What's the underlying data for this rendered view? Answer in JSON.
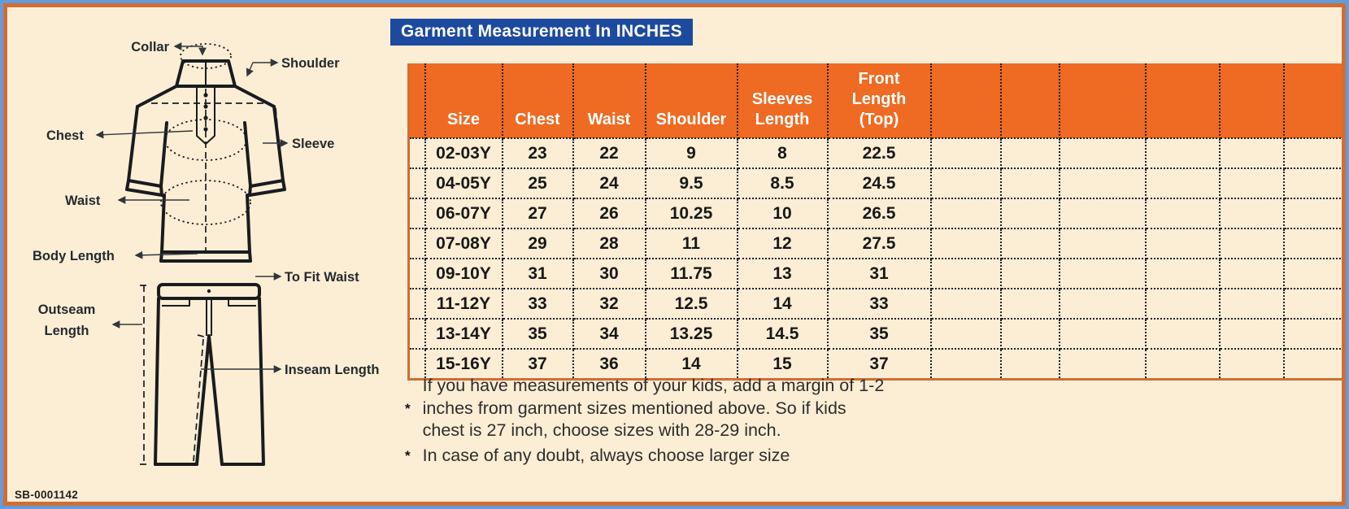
{
  "title": "Garment Measurement In INCHES",
  "product_code": "SB-0001142",
  "colors": {
    "background_cream": "#fceed5",
    "frame_blue": "#639bdd",
    "frame_orange": "#cf6e33",
    "header_orange": "#ef6a22",
    "title_blue": "#1c4a9e"
  },
  "diagram": {
    "labels": {
      "collar": "Collar",
      "shoulder": "Shoulder",
      "chest": "Chest",
      "sleeve": "Sleeve",
      "waist": "Waist",
      "body_length": "Body Length",
      "to_fit_waist": "To Fit Waist",
      "outseam_line1": "Outseam",
      "outseam_line2": "Length",
      "inseam": "Inseam Length"
    }
  },
  "table": {
    "headers": [
      "Size",
      "Chest",
      "Waist",
      "Shoulder",
      "Sleeves\nLength",
      "Front\nLength\n(Top)"
    ],
    "empty_column_count": 6,
    "rows": [
      [
        "02-03Y",
        "23",
        "22",
        "9",
        "8",
        "22.5"
      ],
      [
        "04-05Y",
        "25",
        "24",
        "9.5",
        "8.5",
        "24.5"
      ],
      [
        "06-07Y",
        "27",
        "26",
        "10.25",
        "10",
        "26.5"
      ],
      [
        "07-08Y",
        "29",
        "28",
        "11",
        "12",
        "27.5"
      ],
      [
        "09-10Y",
        "31",
        "30",
        "11.75",
        "13",
        "31"
      ],
      [
        "11-12Y",
        "33",
        "32",
        "12.5",
        "14",
        "33"
      ],
      [
        "13-14Y",
        "35",
        "34",
        "13.25",
        "14.5",
        "35"
      ],
      [
        "15-16Y",
        "37",
        "36",
        "14",
        "15",
        "37"
      ]
    ]
  },
  "notes": {
    "bullet": "*",
    "note1": "If you have measurements of your kids, add a margin of 1-2\ninches from garment sizes mentioned above. So if kids\nchest is 27 inch, choose sizes with 28-29 inch.",
    "note2": "In case of any doubt, always choose larger size"
  }
}
